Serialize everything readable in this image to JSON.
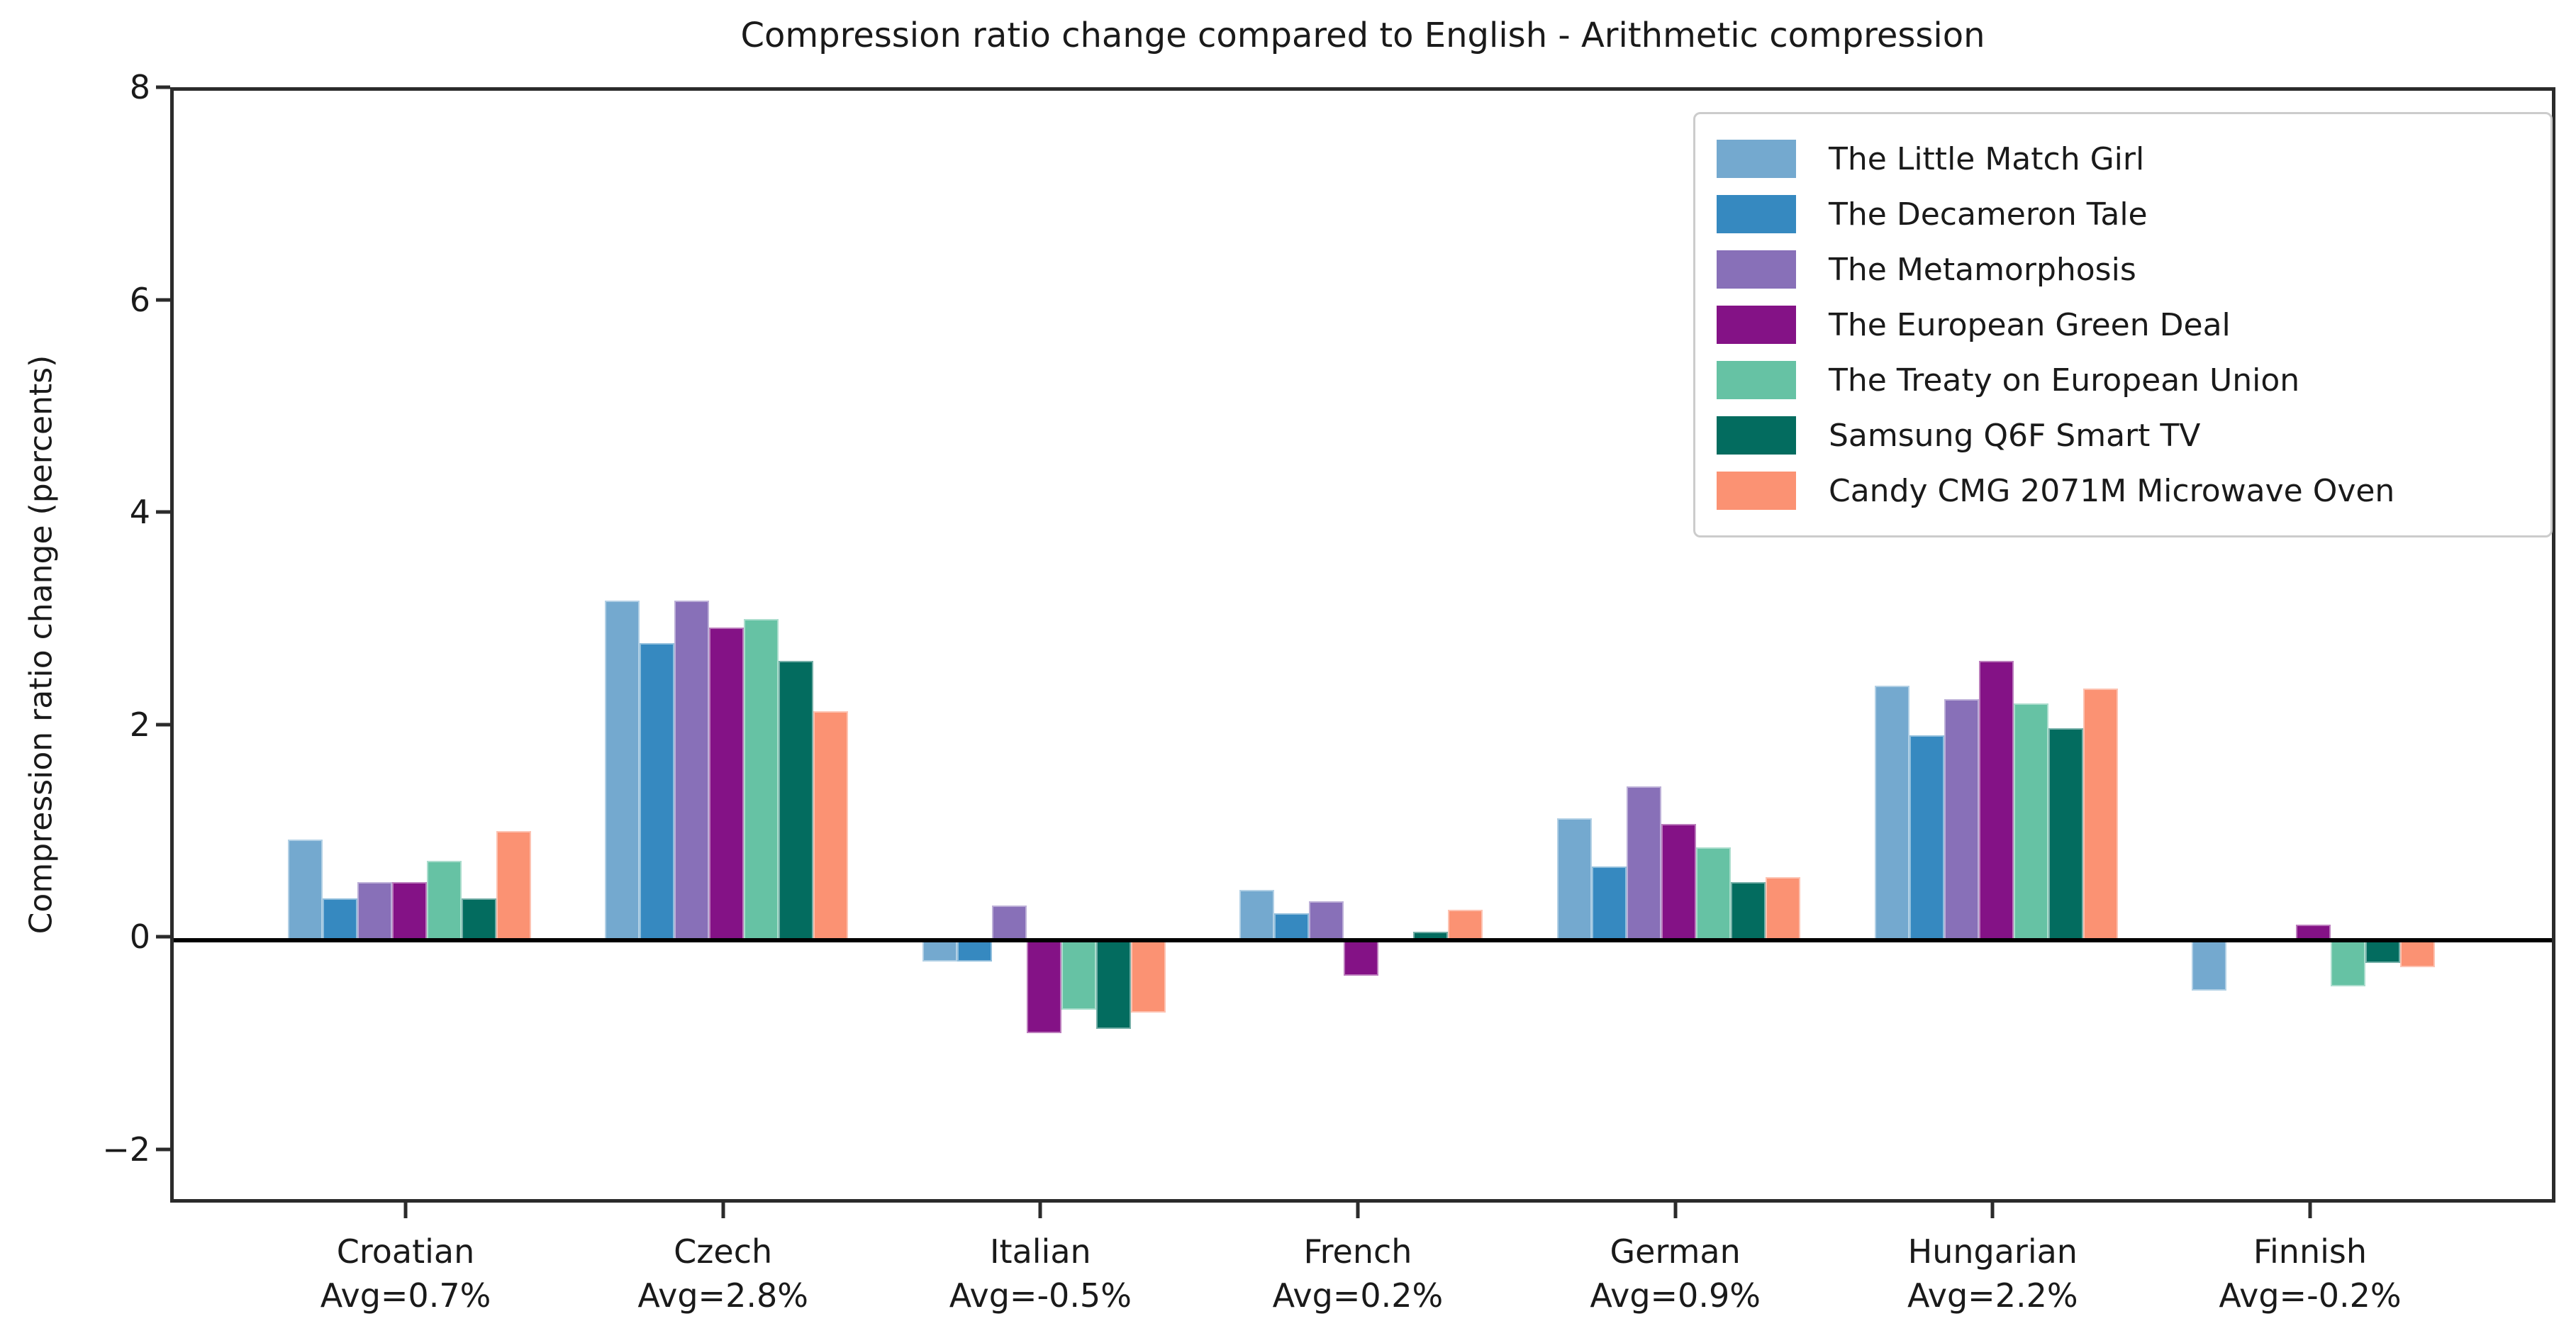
{
  "title": "Compression ratio change compared to English - Arithmetic compression",
  "chart_data": {
    "type": "bar",
    "title": "Compression ratio change compared to English - Arithmetic compression",
    "xlabel": "",
    "ylabel": "Compression ratio change (percents)",
    "ylim": [
      -2.5,
      8
    ],
    "yticks": [
      8,
      6,
      4,
      2,
      0,
      -2
    ],
    "grid": false,
    "legend_position": "upper right",
    "categories": [
      "Croatian",
      "Czech",
      "Italian",
      "French",
      "German",
      "Hungarian",
      "Finnish"
    ],
    "category_avg_labels": [
      "Avg=0.7%",
      "Avg=2.8%",
      "Avg=-0.5%",
      "Avg=0.2%",
      "Avg=0.9%",
      "Avg=2.2%",
      "Avg=-0.2%"
    ],
    "series": [
      {
        "name": "The Little Match Girl",
        "color": "#74a9cf",
        "values": [
          0.95,
          3.2,
          -0.2,
          0.48,
          1.15,
          2.4,
          -0.47
        ]
      },
      {
        "name": "The Decameron Tale",
        "color": "#3689c0",
        "values": [
          0.4,
          2.8,
          -0.2,
          0.26,
          0.7,
          1.93,
          0.0
        ]
      },
      {
        "name": "The Metamorphosis",
        "color": "#8870b8",
        "values": [
          0.55,
          3.2,
          0.33,
          0.37,
          1.45,
          2.27,
          0.0
        ]
      },
      {
        "name": "The European Green Deal",
        "color": "#841286",
        "values": [
          0.55,
          2.95,
          -0.87,
          -0.33,
          1.1,
          2.63,
          0.15
        ]
      },
      {
        "name": "The Treaty on European Union",
        "color": "#66c2a4",
        "values": [
          0.75,
          3.03,
          -0.65,
          0.0,
          0.88,
          2.23,
          -0.43
        ]
      },
      {
        "name": "Samsung Q6F Smart TV",
        "color": "#036c5f",
        "values": [
          0.4,
          2.63,
          -0.83,
          0.08,
          0.55,
          2.0,
          -0.21
        ]
      },
      {
        "name": "Candy CMG 2071M Microwave Oven",
        "color": "#fb9273",
        "values": [
          1.03,
          2.16,
          -0.68,
          0.29,
          0.6,
          2.37,
          -0.25
        ]
      }
    ]
  }
}
